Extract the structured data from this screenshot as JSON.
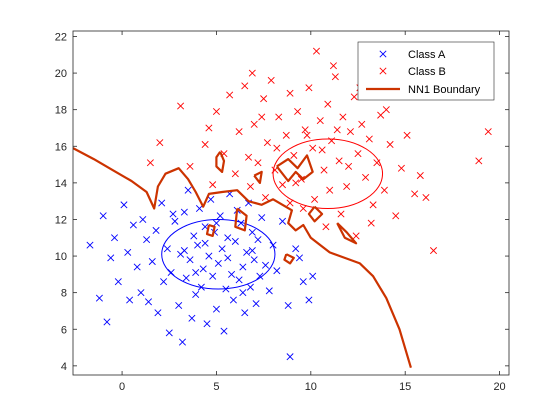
{
  "chart_data": {
    "type": "scatter",
    "xlim": [
      -2.6,
      20.5
    ],
    "ylim": [
      3.5,
      22.3
    ],
    "grid": false,
    "legend_position": "top-right",
    "x_ticks": [
      "0",
      "5",
      "10",
      "15",
      "20"
    ],
    "y_ticks": [
      "4",
      "6",
      "8",
      "10",
      "12",
      "14",
      "16",
      "18",
      "20",
      "22"
    ],
    "colors": {
      "class_a": "#0000ff",
      "class_b": "#ff0000",
      "boundary": "#cc3300",
      "axis": "#262626"
    },
    "series": [
      {
        "name": "Class A",
        "marker": "x",
        "color": "#0000ff",
        "points": [
          [
            -1.7,
            10.6
          ],
          [
            -1.2,
            7.7
          ],
          [
            -1.0,
            12.2
          ],
          [
            -0.8,
            6.4
          ],
          [
            -0.6,
            9.9
          ],
          [
            -0.4,
            11.0
          ],
          [
            -0.2,
            8.6
          ],
          [
            0.1,
            12.8
          ],
          [
            0.3,
            10.2
          ],
          [
            0.4,
            7.6
          ],
          [
            0.6,
            11.7
          ],
          [
            0.8,
            9.4
          ],
          [
            1.0,
            8.0
          ],
          [
            1.1,
            12.0
          ],
          [
            1.3,
            10.9
          ],
          [
            1.4,
            7.5
          ],
          [
            1.6,
            9.7
          ],
          [
            1.8,
            11.4
          ],
          [
            1.9,
            6.9
          ],
          [
            2.1,
            12.9
          ],
          [
            2.2,
            8.6
          ],
          [
            2.4,
            10.4
          ],
          [
            2.5,
            5.8
          ],
          [
            2.6,
            9.1
          ],
          [
            2.8,
            11.9
          ],
          [
            3.0,
            7.3
          ],
          [
            3.1,
            10.1
          ],
          [
            3.2,
            5.3
          ],
          [
            3.3,
            12.4
          ],
          [
            3.4,
            8.8
          ],
          [
            3.5,
            13.6
          ],
          [
            3.6,
            9.8
          ],
          [
            3.7,
            6.6
          ],
          [
            3.8,
            11.1
          ],
          [
            3.9,
            7.9
          ],
          [
            4.0,
            10.6
          ],
          [
            4.1,
            12.6
          ],
          [
            4.2,
            8.3
          ],
          [
            4.3,
            9.3
          ],
          [
            4.4,
            11.6
          ],
          [
            4.5,
            6.3
          ],
          [
            4.6,
            10.0
          ],
          [
            4.7,
            13.1
          ],
          [
            4.8,
            8.9
          ],
          [
            4.9,
            11.3
          ],
          [
            5.0,
            7.1
          ],
          [
            5.1,
            9.6
          ],
          [
            5.2,
            12.2
          ],
          [
            5.3,
            10.4
          ],
          [
            5.4,
            5.9
          ],
          [
            5.5,
            8.2
          ],
          [
            5.6,
            11.0
          ],
          [
            5.7,
            13.4
          ],
          [
            5.8,
            9.0
          ],
          [
            5.9,
            7.6
          ],
          [
            6.0,
            10.8
          ],
          [
            6.1,
            12.5
          ],
          [
            6.2,
            8.7
          ],
          [
            6.3,
            11.8
          ],
          [
            6.4,
            9.4
          ],
          [
            6.5,
            6.9
          ],
          [
            6.6,
            10.2
          ],
          [
            6.7,
            12.9
          ],
          [
            6.8,
            8.3
          ],
          [
            6.9,
            11.3
          ],
          [
            7.0,
            9.8
          ],
          [
            7.1,
            7.4
          ],
          [
            7.2,
            10.9
          ],
          [
            7.3,
            8.9
          ],
          [
            7.4,
            12.1
          ],
          [
            7.6,
            9.5
          ],
          [
            7.8,
            8.1
          ],
          [
            8.0,
            10.6
          ],
          [
            8.2,
            9.2
          ],
          [
            8.5,
            11.9
          ],
          [
            8.8,
            7.3
          ],
          [
            8.9,
            4.5
          ],
          [
            9.2,
            10.4
          ],
          [
            9.6,
            8.6
          ],
          [
            9.9,
            7.6
          ],
          [
            10.1,
            8.9
          ],
          [
            9.4,
            9.9
          ],
          [
            2.7,
            12.3
          ],
          [
            3.9,
            9.1
          ],
          [
            5.6,
            9.9
          ],
          [
            6.4,
            8.0
          ],
          [
            4.4,
            10.7
          ],
          [
            5.0,
            11.8
          ],
          [
            6.9,
            10.3
          ],
          [
            3.3,
            10.3
          ]
        ]
      },
      {
        "name": "Class B",
        "marker": "x",
        "color": "#ff0000",
        "points": [
          [
            1.5,
            15.1
          ],
          [
            3.1,
            18.2
          ],
          [
            3.6,
            14.9
          ],
          [
            4.4,
            16.1
          ],
          [
            4.8,
            13.9
          ],
          [
            5.0,
            17.9
          ],
          [
            5.4,
            15.6
          ],
          [
            5.7,
            18.8
          ],
          [
            6.0,
            14.5
          ],
          [
            6.2,
            16.8
          ],
          [
            6.5,
            19.3
          ],
          [
            6.8,
            13.8
          ],
          [
            7.0,
            17.2
          ],
          [
            7.2,
            15.1
          ],
          [
            7.5,
            18.6
          ],
          [
            7.7,
            16.2
          ],
          [
            7.9,
            19.6
          ],
          [
            8.1,
            14.7
          ],
          [
            8.3,
            17.6
          ],
          [
            8.5,
            13.9
          ],
          [
            8.7,
            16.6
          ],
          [
            8.9,
            18.9
          ],
          [
            9.1,
            15.5
          ],
          [
            9.3,
            17.9
          ],
          [
            9.5,
            14.2
          ],
          [
            9.7,
            16.9
          ],
          [
            9.9,
            19.2
          ],
          [
            10.1,
            15.9
          ],
          [
            10.3,
            21.2
          ],
          [
            10.5,
            17.4
          ],
          [
            10.7,
            14.7
          ],
          [
            10.9,
            18.3
          ],
          [
            11.1,
            16.3
          ],
          [
            11.3,
            19.8
          ],
          [
            11.5,
            15.2
          ],
          [
            11.7,
            17.6
          ],
          [
            11.9,
            13.8
          ],
          [
            12.1,
            16.8
          ],
          [
            12.3,
            18.7
          ],
          [
            12.5,
            15.6
          ],
          [
            12.7,
            17.2
          ],
          [
            12.9,
            14.3
          ],
          [
            13.1,
            16.4
          ],
          [
            13.3,
            12.8
          ],
          [
            13.5,
            15.1
          ],
          [
            13.7,
            17.7
          ],
          [
            13.9,
            13.6
          ],
          [
            14.2,
            16.1
          ],
          [
            14.5,
            12.2
          ],
          [
            14.8,
            14.8
          ],
          [
            15.1,
            16.6
          ],
          [
            15.5,
            13.4
          ],
          [
            15.8,
            14.4
          ],
          [
            16.1,
            13.2
          ],
          [
            16.5,
            10.3
          ],
          [
            18.9,
            15.2
          ],
          [
            19.4,
            16.8
          ],
          [
            10.8,
            11.6
          ],
          [
            11.6,
            12.3
          ],
          [
            12.4,
            11.1
          ],
          [
            13.2,
            11.8
          ],
          [
            9.6,
            12.6
          ],
          [
            10.2,
            13.1
          ],
          [
            8.9,
            12.9
          ],
          [
            7.6,
            13.2
          ],
          [
            11.0,
            13.6
          ],
          [
            12.0,
            14.9
          ],
          [
            9.2,
            14.0
          ],
          [
            10.6,
            15.8
          ],
          [
            8.2,
            15.9
          ],
          [
            6.7,
            15.4
          ],
          [
            9.8,
            16.6
          ],
          [
            11.4,
            16.9
          ],
          [
            7.4,
            17.6
          ],
          [
            12.6,
            19.2
          ],
          [
            14.0,
            18.0
          ],
          [
            6.9,
            20.0
          ],
          [
            11.2,
            20.4
          ],
          [
            4.6,
            17.0
          ],
          [
            2.0,
            16.2
          ]
        ]
      }
    ],
    "ellipses": [
      {
        "series": "Class A",
        "cx": 5.1,
        "cy": 10.1,
        "rx": 3.0,
        "ry": 1.9,
        "color": "#0000ff"
      },
      {
        "series": "Class B",
        "cx": 10.9,
        "cy": 14.5,
        "rx": 2.9,
        "ry": 1.9,
        "color": "#ff0000"
      }
    ],
    "boundary": {
      "name": "NN1 Boundary",
      "color": "#cc3300",
      "paths": [
        [
          [
            -2.6,
            15.9
          ],
          [
            -1.5,
            15.3
          ],
          [
            -0.5,
            14.7
          ],
          [
            0.5,
            14.1
          ],
          [
            1.3,
            13.5
          ],
          [
            1.7,
            12.6
          ],
          [
            1.9,
            13.8
          ],
          [
            2.3,
            14.5
          ],
          [
            3.0,
            14.8
          ],
          [
            3.5,
            14.2
          ],
          [
            3.9,
            13.5
          ],
          [
            4.3,
            12.7
          ],
          [
            4.6,
            13.4
          ],
          [
            5.3,
            13.5
          ],
          [
            6.1,
            13.6
          ],
          [
            6.7,
            13.0
          ],
          [
            7.4,
            12.8
          ],
          [
            8.0,
            13.1
          ],
          [
            8.5,
            12.8
          ],
          [
            9.0,
            12.5
          ],
          [
            8.8,
            11.8
          ],
          [
            9.2,
            11.4
          ],
          [
            9.6,
            11.7
          ],
          [
            10.0,
            11.0
          ],
          [
            10.5,
            10.6
          ],
          [
            11.0,
            10.2
          ],
          [
            11.8,
            9.9
          ],
          [
            12.6,
            9.6
          ],
          [
            13.3,
            8.9
          ],
          [
            14.0,
            7.7
          ],
          [
            14.7,
            6.0
          ],
          [
            15.3,
            3.9
          ]
        ],
        [
          [
            4.6,
            11.7
          ],
          [
            4.9,
            11.6
          ],
          [
            4.8,
            11.1
          ],
          [
            4.5,
            11.2
          ],
          [
            4.6,
            11.7
          ]
        ],
        [
          [
            5.2,
            15.7
          ],
          [
            5.4,
            15.2
          ],
          [
            5.3,
            14.6
          ],
          [
            5.0,
            14.9
          ],
          [
            5.0,
            15.4
          ],
          [
            5.2,
            15.7
          ]
        ],
        [
          [
            6.1,
            12.6
          ],
          [
            6.6,
            12.2
          ],
          [
            6.5,
            11.4
          ],
          [
            6.0,
            11.6
          ],
          [
            6.1,
            12.6
          ]
        ],
        [
          [
            8.7,
            10.1
          ],
          [
            9.1,
            9.9
          ],
          [
            8.9,
            9.6
          ],
          [
            8.6,
            9.8
          ],
          [
            8.7,
            10.1
          ]
        ],
        [
          [
            10.2,
            12.7
          ],
          [
            10.6,
            12.3
          ],
          [
            10.2,
            11.9
          ],
          [
            9.9,
            12.3
          ],
          [
            10.2,
            12.7
          ]
        ],
        [
          [
            11.4,
            11.8
          ],
          [
            11.9,
            11.3
          ],
          [
            12.4,
            10.7
          ],
          [
            11.8,
            11.0
          ],
          [
            11.4,
            11.8
          ]
        ],
        [
          [
            8.2,
            14.9
          ],
          [
            8.8,
            15.3
          ],
          [
            9.3,
            14.8
          ],
          [
            9.8,
            15.5
          ],
          [
            10.1,
            14.6
          ],
          [
            9.6,
            14.2
          ],
          [
            9.2,
            14.6
          ],
          [
            8.8,
            14.1
          ],
          [
            8.2,
            14.9
          ]
        ],
        [
          [
            7.0,
            14.4
          ],
          [
            7.4,
            14.6
          ],
          [
            7.3,
            14.0
          ],
          [
            7.0,
            14.4
          ]
        ]
      ]
    },
    "legend": [
      "Class A",
      "Class B",
      "NN1 Boundary"
    ]
  }
}
